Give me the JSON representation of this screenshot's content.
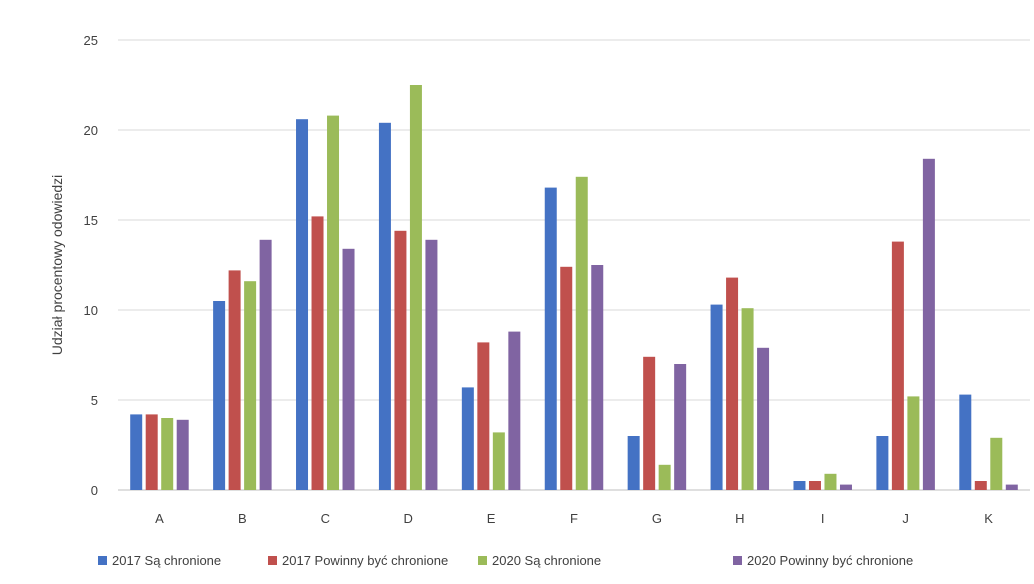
{
  "chart_data": {
    "type": "bar",
    "categories": [
      "A",
      "B",
      "C",
      "D",
      "E",
      "F",
      "G",
      "H",
      "I",
      "J",
      "K"
    ],
    "series": [
      {
        "name": "2017 Są chronione",
        "color": "#4472c4",
        "values": [
          4.2,
          10.5,
          20.6,
          20.4,
          5.7,
          16.8,
          3.0,
          10.3,
          0.5,
          3.0,
          5.3
        ]
      },
      {
        "name": "2017 Powinny być chronione",
        "color": "#c0504d",
        "values": [
          4.2,
          12.2,
          15.2,
          14.4,
          8.2,
          12.4,
          7.4,
          11.8,
          0.5,
          13.8,
          0.5
        ]
      },
      {
        "name": "2020 Są chronione",
        "color": "#9bbb59",
        "values": [
          4.0,
          11.6,
          20.8,
          22.5,
          3.2,
          17.4,
          1.4,
          10.1,
          0.9,
          5.2,
          2.9
        ]
      },
      {
        "name": "2020 Powinny być chronione",
        "color": "#8064a2",
        "values": [
          3.9,
          13.9,
          13.4,
          13.9,
          8.8,
          12.5,
          7.0,
          7.9,
          0.3,
          18.4,
          0.3
        ]
      }
    ],
    "yticks": [
      "0",
      "5",
      "10",
      "15",
      "20",
      "25"
    ],
    "ylim": [
      0,
      25
    ],
    "ylabel": "Udział procentowy odowiedzi",
    "xlabel": "",
    "title": "",
    "grid": true,
    "legend_position": "bottom"
  }
}
